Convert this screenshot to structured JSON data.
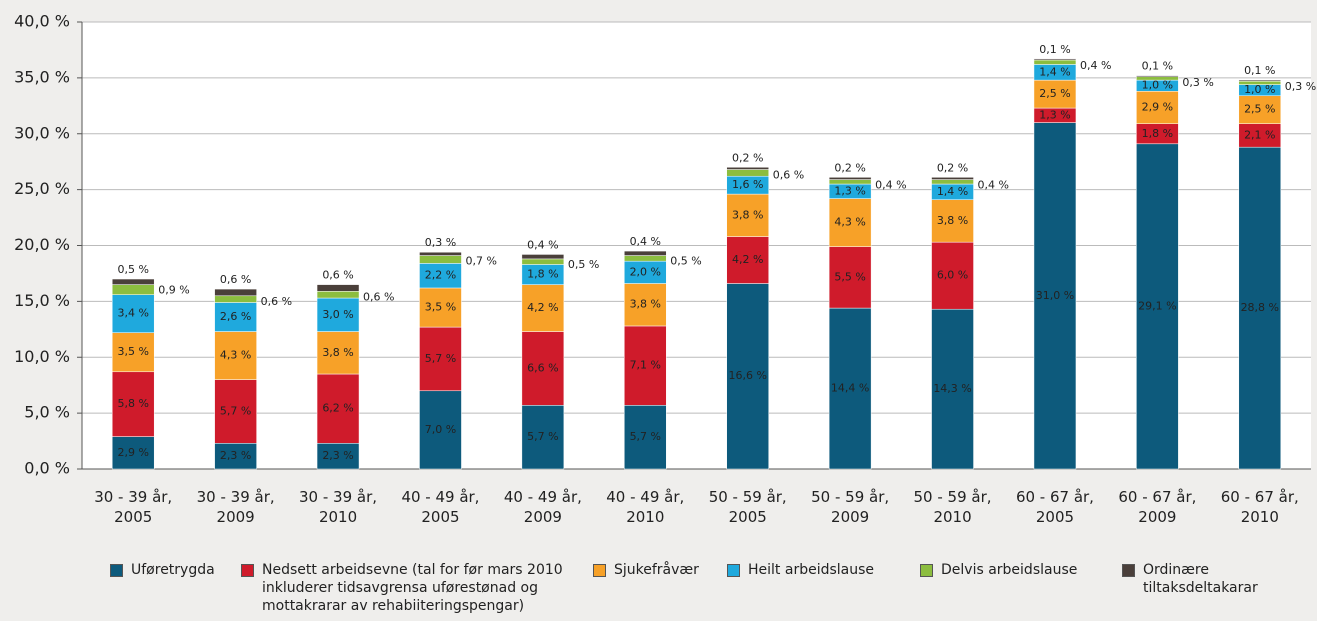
{
  "chart_data": {
    "type": "stacked_bar",
    "categories": [
      [
        "30 - 39 år,",
        "2005"
      ],
      [
        "30 - 39 år,",
        "2009"
      ],
      [
        "30 - 39 år,",
        "2010"
      ],
      [
        "40 - 49 år,",
        "2005"
      ],
      [
        "40 - 49 år,",
        "2009"
      ],
      [
        "40 - 49 år,",
        "2010"
      ],
      [
        "50 - 59 år,",
        "2005"
      ],
      [
        "50 - 59 år,",
        "2009"
      ],
      [
        "50 - 59 år,",
        "2010"
      ],
      [
        "60 - 67 år,",
        "2005"
      ],
      [
        "60 - 67 år,",
        "2009"
      ],
      [
        "60 - 67 år,",
        "2010"
      ]
    ],
    "series": [
      {
        "name": "Uføretrygda",
        "color": "#0d5a7c",
        "values": [
          2.9,
          2.3,
          2.3,
          7.0,
          5.7,
          5.7,
          16.6,
          14.4,
          14.3,
          31.0,
          29.1,
          28.8
        ],
        "value_labels": [
          "2,9 %",
          "2,3 %",
          "2,3 %",
          "7,0 %",
          "5,7 %",
          "5,7 %",
          "16,6 %",
          "14,4 %",
          "14,3 %",
          "31,0 %",
          "29,1 %",
          "28,8 %"
        ]
      },
      {
        "name": "Nedsett arbeidsevne (tal for før mars 2010 inkluderer tidsavgrensa uførestønad og mottakrarar av rehabiiteringspengar)",
        "color": "#cf1b2b",
        "values": [
          5.8,
          5.7,
          6.2,
          5.7,
          6.6,
          7.1,
          4.2,
          5.5,
          6.0,
          1.3,
          1.8,
          2.1
        ],
        "value_labels": [
          "5,8 %",
          "5,7 %",
          "6,2 %",
          "5,7 %",
          "6,6 %",
          "7,1 %",
          "4,2 %",
          "5,5 %",
          "6,0 %",
          "1,3 %",
          "1,8 %",
          "2,1 %"
        ]
      },
      {
        "name": "Sjukefråvær",
        "color": "#f7a128",
        "values": [
          3.5,
          4.3,
          3.8,
          3.5,
          4.2,
          3.8,
          3.8,
          4.3,
          3.8,
          2.5,
          2.9,
          2.5
        ],
        "value_labels": [
          "3,5 %",
          "4,3 %",
          "3,8 %",
          "3,5 %",
          "4,2 %",
          "3,8 %",
          "3,8 %",
          "4,3 %",
          "3,8 %",
          "2,5 %",
          "2,9 %",
          "2,5 %"
        ]
      },
      {
        "name": "Heilt arbeidslause",
        "color": "#1fa9dd",
        "values": [
          3.4,
          2.6,
          3.0,
          2.2,
          1.8,
          2.0,
          1.6,
          1.3,
          1.4,
          1.4,
          1.0,
          1.0
        ],
        "value_labels": [
          "3,4 %",
          "2,6 %",
          "3,0 %",
          "2,2 %",
          "1,8 %",
          "2,0 %",
          "1,6 %",
          "1,3 %",
          "1,4 %",
          "1,4 %",
          "1,0 %",
          "1,0 %"
        ]
      },
      {
        "name": "Delvis arbeidslause",
        "color": "#8cbd3f",
        "values": [
          0.9,
          0.6,
          0.6,
          0.7,
          0.5,
          0.5,
          0.6,
          0.4,
          0.4,
          0.4,
          0.3,
          0.3
        ],
        "value_labels": [
          "0,9 %",
          "0,6 %",
          "0,6 %",
          "0,7 %",
          "0,5 %",
          "0,5 %",
          "0,6 %",
          "0,4 %",
          "0,4 %",
          "0,4 %",
          "0,3 %",
          "0,3 %"
        ]
      },
      {
        "name": "Ordinære tiltaksdeltakarar",
        "color": "#4a3f3a",
        "values": [
          0.5,
          0.6,
          0.6,
          0.3,
          0.4,
          0.4,
          0.2,
          0.2,
          0.2,
          0.1,
          0.1,
          0.1
        ],
        "value_labels": [
          "0,5 %",
          "0,6 %",
          "0,6 %",
          "0,3 %",
          "0,4 %",
          "0,4 %",
          "0,2 %",
          "0,2 %",
          "0,2 %",
          "0,1 %",
          "0,1 %",
          "0,1 %"
        ]
      }
    ],
    "ylim": [
      0,
      40
    ],
    "yticks": [
      {
        "value": 0,
        "label": "0,0 %"
      },
      {
        "value": 5,
        "label": "5,0 %"
      },
      {
        "value": 10,
        "label": "10,0 %"
      },
      {
        "value": 15,
        "label": "15,0 %"
      },
      {
        "value": 20,
        "label": "20,0 %"
      },
      {
        "value": 25,
        "label": "25,0 %"
      },
      {
        "value": 30,
        "label": "30,0 %"
      },
      {
        "value": 35,
        "label": "35,0 %"
      },
      {
        "value": 40,
        "label": "40,0 %"
      }
    ],
    "grid": true,
    "legend": "bottom"
  }
}
